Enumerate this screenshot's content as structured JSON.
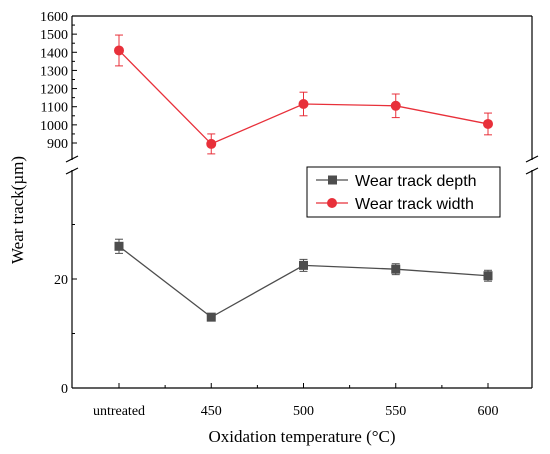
{
  "chart_data": {
    "type": "line",
    "categories": [
      "untreated",
      "450",
      "500",
      "550",
      "600"
    ],
    "xlabel": "Oxidation temperature (°C)",
    "ylabel": "Wear track(µm)",
    "grid": false,
    "legend_position": "middle-right",
    "axis_break": true,
    "y_upper": {
      "ylim": [
        850,
        1600
      ],
      "ticks": [
        900,
        1000,
        1100,
        1200,
        1300,
        1400,
        1500,
        1600
      ]
    },
    "y_lower": {
      "ylim": [
        0,
        40
      ],
      "ticks": [
        0,
        20
      ]
    },
    "series": [
      {
        "name": "Wear track depth",
        "axis": "lower",
        "color": "#4d4d4d",
        "marker": "square",
        "values": [
          26.0,
          13.0,
          22.5,
          21.8,
          20.6
        ],
        "errors": [
          1.3,
          0.5,
          1.1,
          1.0,
          1.0
        ]
      },
      {
        "name": "Wear track width",
        "axis": "upper",
        "color": "#e8303a",
        "marker": "circle",
        "values": [
          1410,
          895,
          1115,
          1105,
          1005
        ],
        "errors": [
          85,
          55,
          65,
          65,
          60
        ]
      }
    ]
  }
}
